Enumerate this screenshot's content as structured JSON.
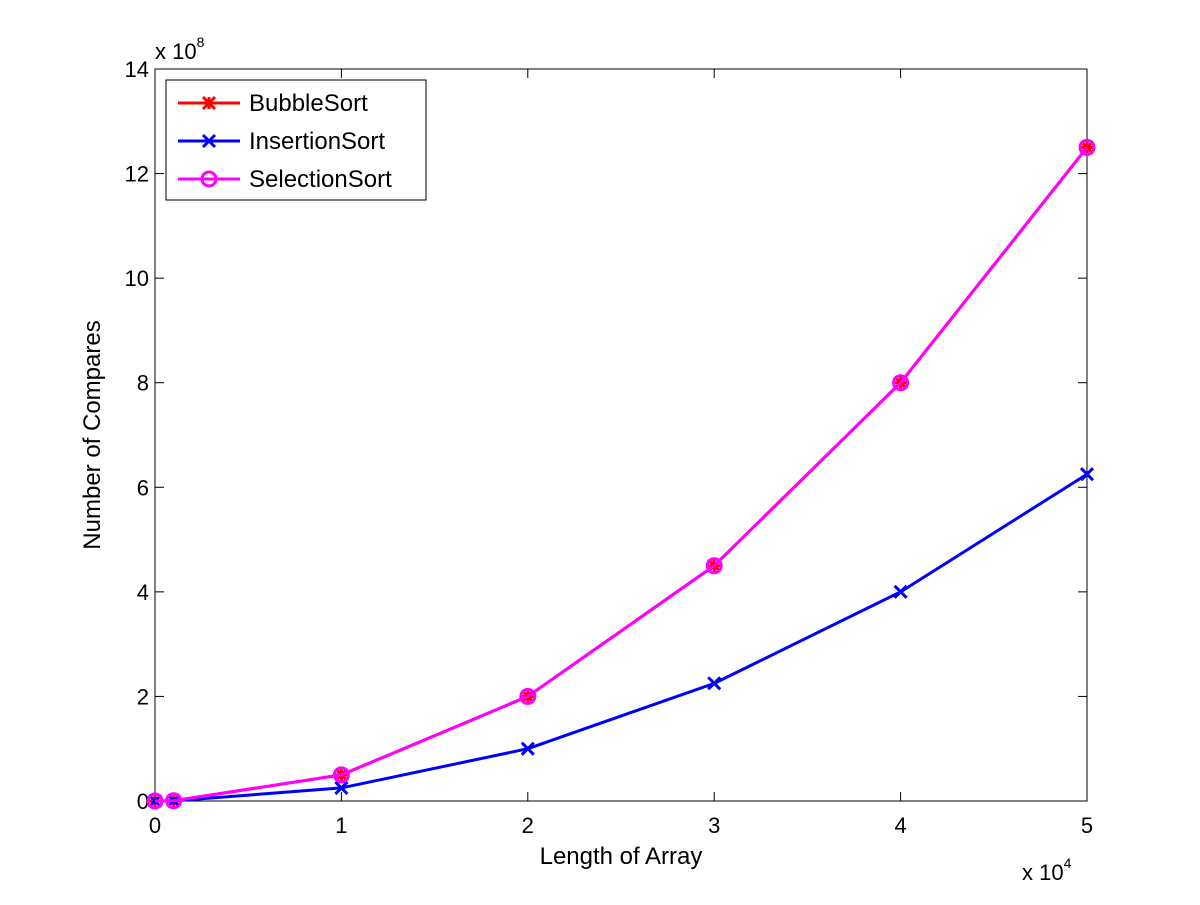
{
  "chart_data": {
    "type": "line",
    "xlabel": "Length of Array",
    "ylabel": "Number of Compares",
    "x_multiplier": {
      "prefix": "x 10",
      "exponent": "4"
    },
    "y_multiplier": {
      "prefix": "x 10",
      "exponent": "8"
    },
    "xlim": [
      0,
      5
    ],
    "ylim": [
      0,
      14
    ],
    "x_ticks": [
      0,
      1,
      2,
      3,
      4,
      5
    ],
    "y_ticks": [
      0,
      2,
      4,
      6,
      8,
      10,
      12,
      14
    ],
    "grid": false,
    "legend_position": "top-left",
    "x": [
      0,
      0.1,
      1,
      2,
      3,
      4,
      5
    ],
    "series": [
      {
        "name": "BubbleSort",
        "color": "#ff0000",
        "marker": "asterisk",
        "values": [
          0,
          0.005,
          0.5,
          2.0,
          4.5,
          8.0,
          12.5
        ]
      },
      {
        "name": "InsertionSort",
        "color": "#0000ff",
        "marker": "x",
        "values": [
          0,
          0.0025,
          0.25,
          1.0,
          2.25,
          4.0,
          6.25
        ]
      },
      {
        "name": "SelectionSort",
        "color": "#ff00ff",
        "marker": "circle",
        "values": [
          0,
          0.005,
          0.5,
          2.0,
          4.5,
          8.0,
          12.5
        ]
      }
    ]
  }
}
